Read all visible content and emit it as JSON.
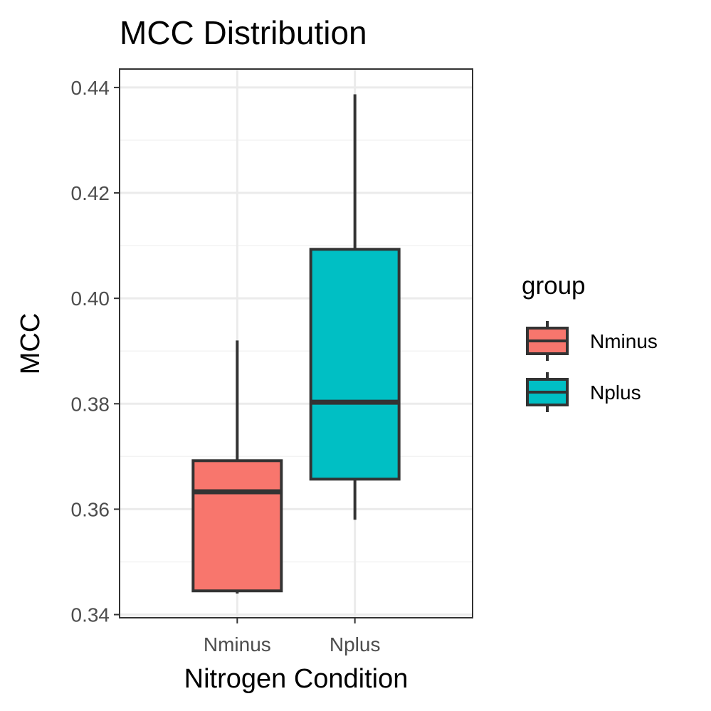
{
  "chart_data": {
    "type": "boxplot",
    "title": "MCC Distribution",
    "xlabel": "Nitrogen Condition",
    "ylabel": "MCC",
    "ylim": [
      0.3394,
      0.4435
    ],
    "yticks": [
      0.34,
      0.36,
      0.38,
      0.4,
      0.42,
      0.44
    ],
    "ytick_labels": [
      "0.34",
      "0.36",
      "0.38",
      "0.40",
      "0.42",
      "0.44"
    ],
    "grid": true,
    "legend": {
      "title": "group",
      "placement": "right",
      "entries": [
        {
          "label": "Nminus",
          "color": "#F8766D"
        },
        {
          "label": "Nplus",
          "color": "#00BFC4"
        }
      ]
    },
    "categories": [
      "Nminus",
      "Nplus"
    ],
    "boxes": [
      {
        "category": "Nminus",
        "min": 0.344,
        "q1": 0.3445,
        "median": 0.3633,
        "q3": 0.3692,
        "max": 0.392,
        "color": "#F8766D"
      },
      {
        "category": "Nplus",
        "min": 0.358,
        "q1": 0.3657,
        "median": 0.3803,
        "q3": 0.4093,
        "max": 0.4387,
        "color": "#00BFC4"
      }
    ]
  },
  "colors": {
    "panel_border": "#333333",
    "grid_major": "#ebebeb",
    "grid_minor": "#f3f3f3",
    "box_outline": "#333333"
  }
}
